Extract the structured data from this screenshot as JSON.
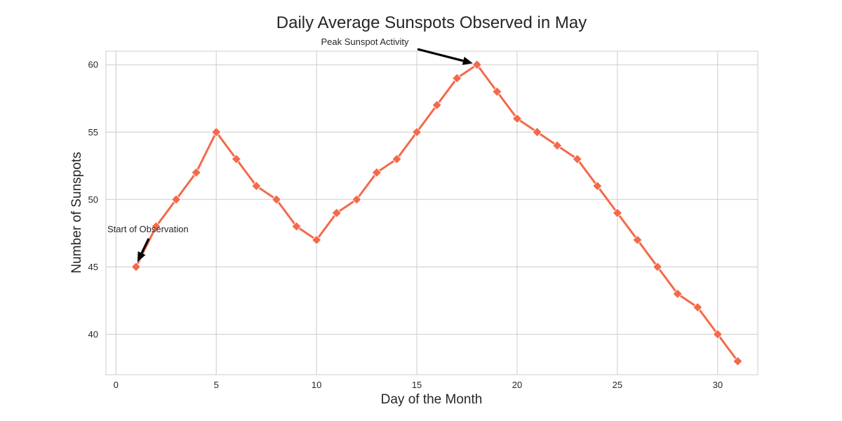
{
  "colors": {
    "series": "#f4694b",
    "grid": "#cccccc",
    "axis_frame": "#cccccc",
    "text": "#262626",
    "annotation_arrow": "#000000"
  },
  "chart_data": {
    "type": "line",
    "title": "Daily Average Sunspots Observed in May",
    "xlabel": "Day of the Month",
    "ylabel": "Number of Sunspots",
    "xlim": [
      -0.5,
      32
    ],
    "ylim": [
      37,
      61
    ],
    "xticks": [
      0,
      5,
      10,
      15,
      20,
      25,
      30
    ],
    "yticks": [
      40,
      45,
      50,
      55,
      60
    ],
    "grid": true,
    "marker": "diamond",
    "x": [
      1,
      2,
      3,
      4,
      5,
      6,
      7,
      8,
      9,
      10,
      11,
      12,
      13,
      14,
      15,
      16,
      17,
      18,
      19,
      20,
      21,
      22,
      23,
      24,
      25,
      26,
      27,
      28,
      29,
      30,
      31
    ],
    "series": [
      {
        "values": [
          45,
          48,
          50,
          52,
          55,
          53,
          51,
          50,
          48,
          47,
          49,
          50,
          52,
          53,
          55,
          57,
          59,
          60,
          58,
          56,
          55,
          54,
          53,
          51,
          49,
          47,
          45,
          43,
          42,
          40,
          38
        ]
      }
    ],
    "annotations": [
      {
        "text": "Start of Observation",
        "x": 1,
        "y": 45
      },
      {
        "text": "Peak Sunspot Activity",
        "x": 18,
        "y": 60
      }
    ]
  }
}
